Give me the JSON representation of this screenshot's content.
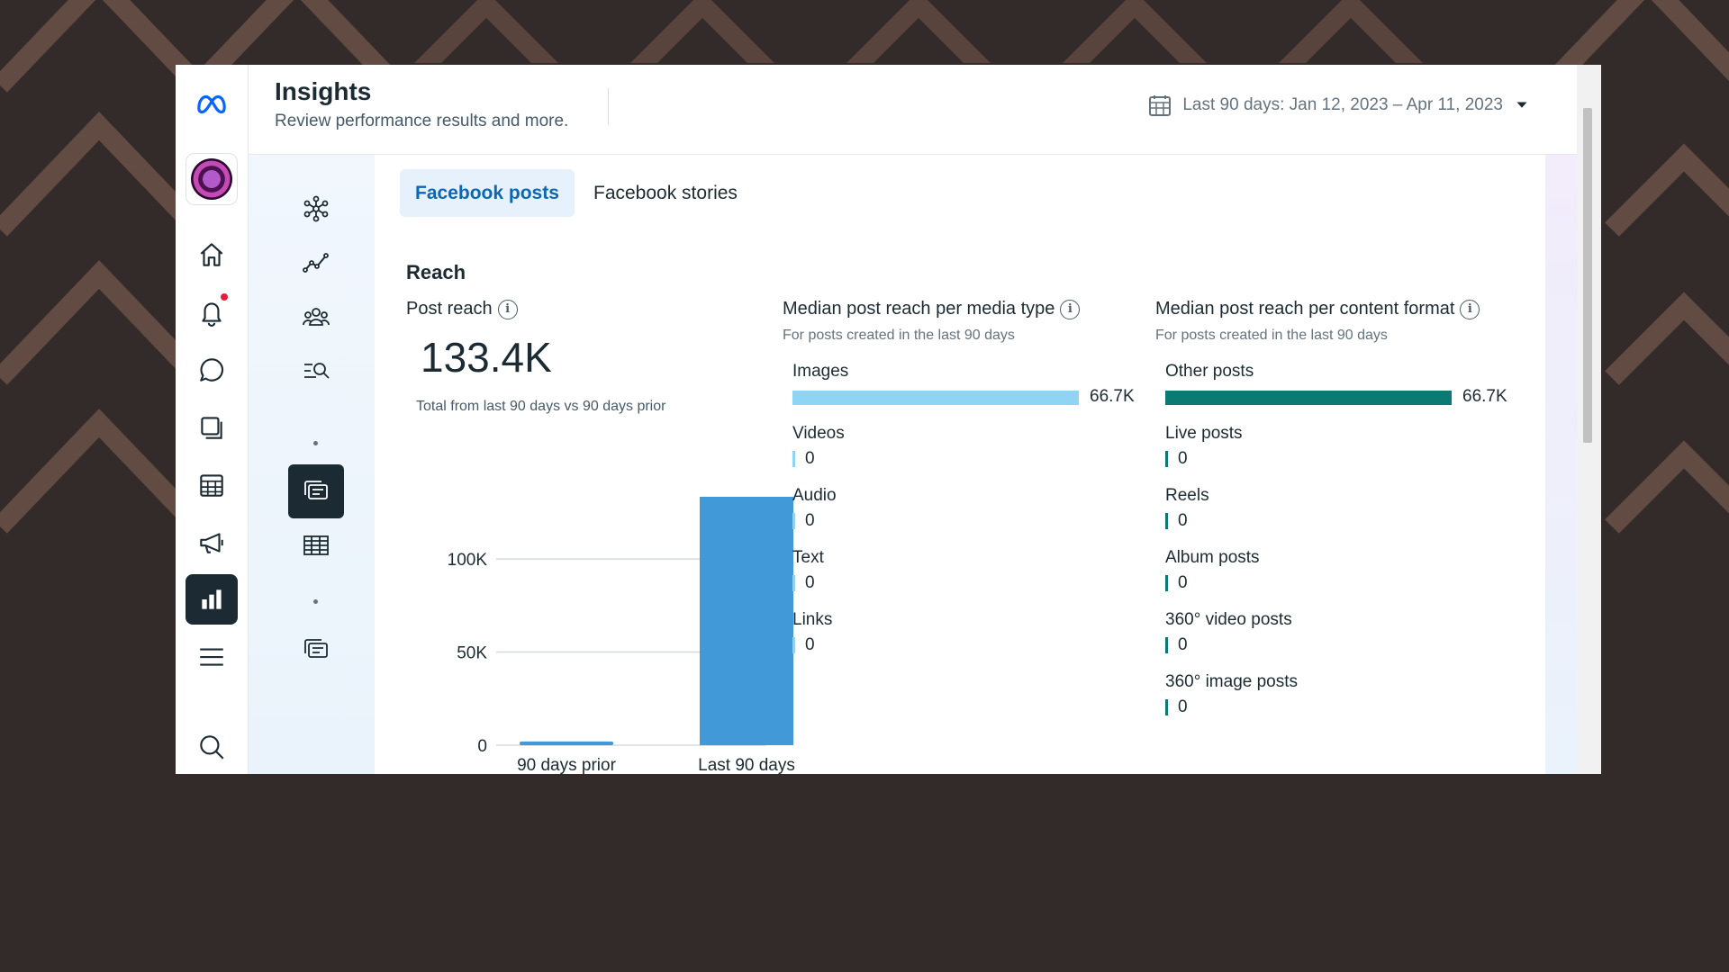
{
  "header": {
    "title": "Insights",
    "subtitle": "Review performance results and more.",
    "date_range": "Last 90 days: Jan 12, 2023 – Apr 11, 2023"
  },
  "tabs": [
    {
      "label": "Facebook posts",
      "active": true
    },
    {
      "label": "Facebook stories",
      "active": false
    }
  ],
  "reach": {
    "heading": "Reach",
    "post_reach": {
      "title": "Post reach",
      "value": "133.4K",
      "caption": "Total from last 90 days vs 90 days prior"
    },
    "media_type": {
      "title": "Median post reach per media type",
      "subtitle": "For posts created in the last 90 days",
      "color": "#8fd4f5",
      "rows": [
        {
          "label": "Images",
          "value": 66700,
          "display": "66.7K"
        },
        {
          "label": "Videos",
          "value": 0,
          "display": "0"
        },
        {
          "label": "Audio",
          "value": 0,
          "display": "0"
        },
        {
          "label": "Text",
          "value": 0,
          "display": "0"
        },
        {
          "label": "Links",
          "value": 0,
          "display": "0"
        }
      ]
    },
    "content_format": {
      "title": "Median post reach per content format",
      "subtitle": "For posts created in the last 90 days",
      "color": "#0a7a72",
      "rows": [
        {
          "label": "Other posts",
          "value": 66700,
          "display": "66.7K"
        },
        {
          "label": "Live posts",
          "value": 0,
          "display": "0"
        },
        {
          "label": "Reels",
          "value": 0,
          "display": "0"
        },
        {
          "label": "Album posts",
          "value": 0,
          "display": "0"
        },
        {
          "label": "360° video posts",
          "value": 0,
          "display": "0"
        },
        {
          "label": "360° image posts",
          "value": 0,
          "display": "0"
        }
      ]
    }
  },
  "chart_data": {
    "type": "bar",
    "categories": [
      "90 days prior",
      "Last 90 days"
    ],
    "values": [
      2000,
      133400
    ],
    "yticks": [
      "0",
      "50K",
      "100K"
    ],
    "ytick_values": [
      0,
      50000,
      100000
    ],
    "ylim": [
      0,
      133400
    ],
    "color": "#4299d8",
    "grid": true
  },
  "colors": {
    "accent_tab_bg": "#e7f1fb",
    "accent_tab_text": "#0a68b7",
    "active_nav": "#1c2b33",
    "background": "#332b2a",
    "pattern": "#6a5148"
  },
  "icons": {
    "left_nav": [
      "meta-logo-icon",
      "home-icon",
      "notifications-icon",
      "messages-icon",
      "content-icon",
      "planner-icon",
      "ads-icon",
      "insights-icon",
      "menu-icon",
      "search-icon"
    ],
    "sub_nav": [
      "overview-icon",
      "results-icon",
      "audience-icon",
      "benchmarking-icon",
      "content-icon",
      "content-table-icon",
      "stories-icon"
    ]
  }
}
